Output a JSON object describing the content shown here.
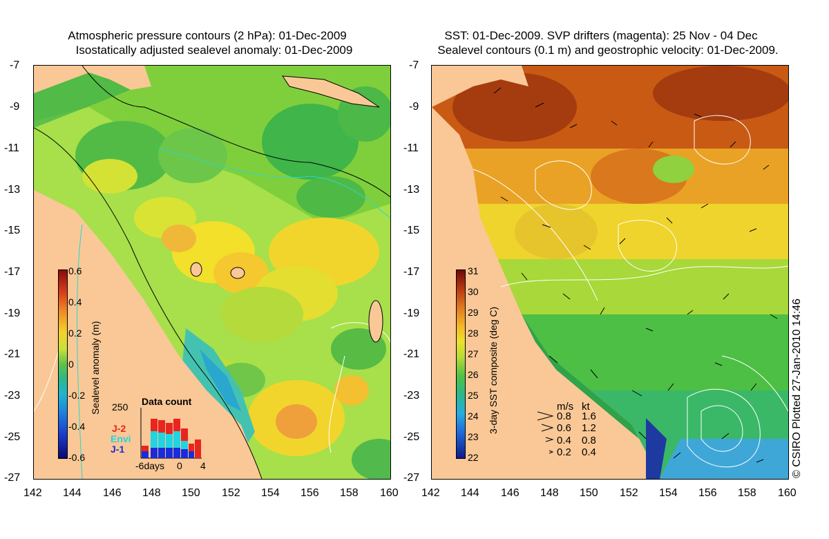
{
  "left_panel": {
    "title_line1": "Atmospheric pressure contours (2 hPa): 01-Dec-2009",
    "title_line2": "Isostatically adjusted sealevel anomaly: 01-Dec-2009",
    "colorbar_label": "Sealevel anomaly (m)",
    "colorbar_ticks": [
      "0.6",
      "0.4",
      "0.2",
      "0",
      "-0.2",
      "-0.4",
      "-0.6"
    ],
    "data_count": {
      "title": "Data count",
      "ymax_label": "250",
      "legend": [
        "J-2",
        "Envi",
        "J-1"
      ],
      "legend_colors": [
        "#e8251e",
        "#22d3e0",
        "#1a2bd8"
      ],
      "x_ticks": [
        "-6days",
        "0",
        "4"
      ]
    }
  },
  "right_panel": {
    "title_line1": "SST: 01-Dec-2009. SVP drifters (magenta): 25 Nov - 04 Dec",
    "title_line2": "Sealevel contours (0.1 m) and geostrophic velocity: 01-Dec-2009.",
    "colorbar_label": "3-day SST composite (deg C)",
    "colorbar_ticks": [
      "31",
      "30",
      "29",
      "28",
      "27",
      "26",
      "25",
      "24",
      "23",
      "22"
    ],
    "velocity_legend": {
      "header_ms": "m/s",
      "header_kt": "kt",
      "rows": [
        {
          "ms": "0.8",
          "kt": "1.6"
        },
        {
          "ms": "0.6",
          "kt": "1.2"
        },
        {
          "ms": "0.4",
          "kt": "0.8"
        },
        {
          "ms": "0.2",
          "kt": "0.4"
        }
      ]
    }
  },
  "y_ticks": [
    "-7",
    "-9",
    "-11",
    "-13",
    "-15",
    "-17",
    "-19",
    "-21",
    "-23",
    "-25",
    "-27"
  ],
  "x_ticks": [
    "142",
    "144",
    "146",
    "148",
    "150",
    "152",
    "154",
    "156",
    "158",
    "160"
  ],
  "credit": "© CSIRO Plotted 27-Jan-2010 14:46"
}
